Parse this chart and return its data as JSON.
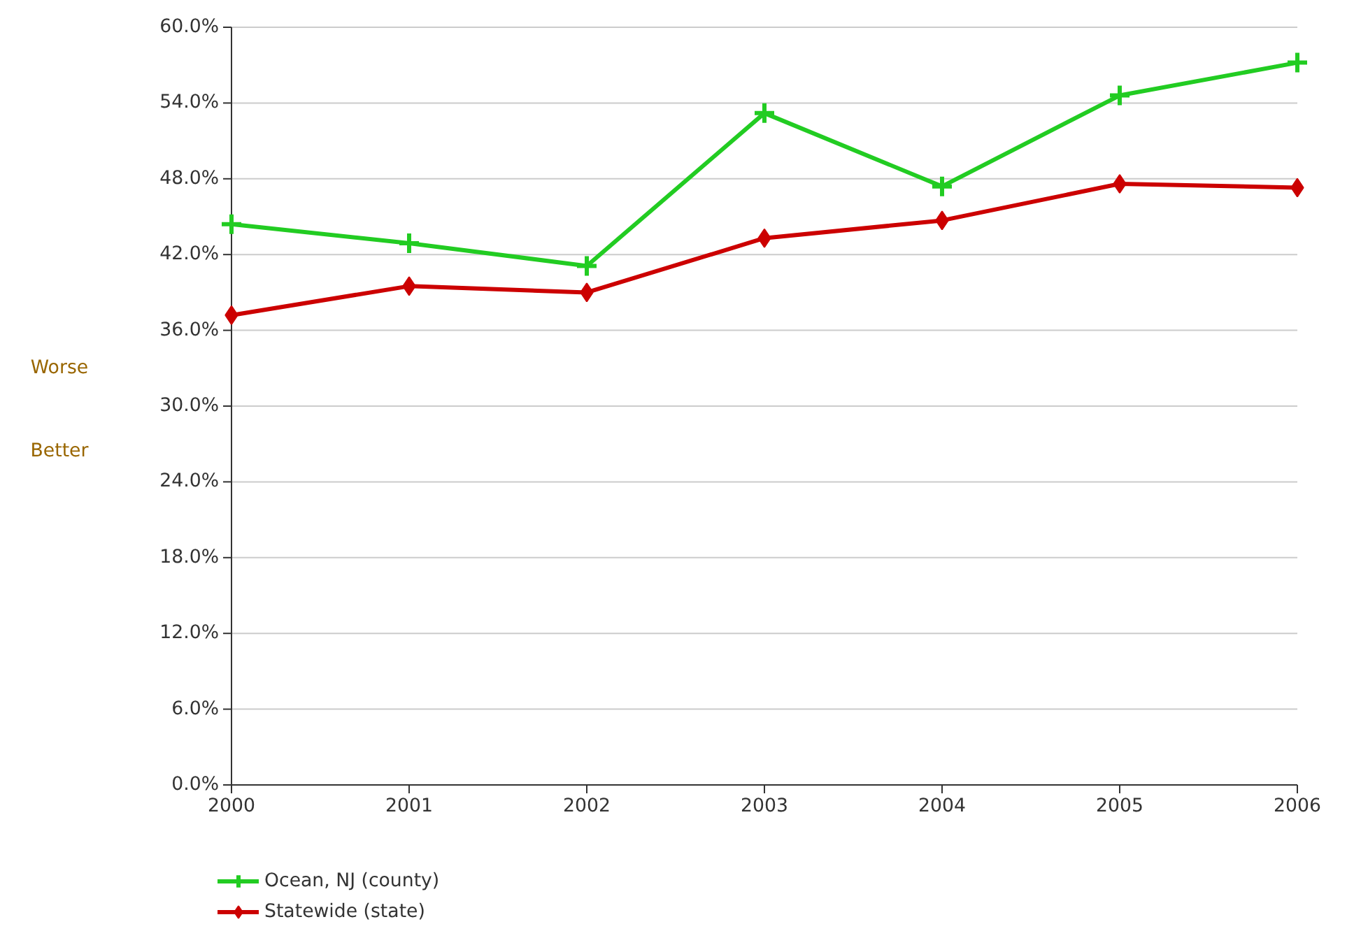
{
  "chart_data": {
    "type": "line",
    "x": [
      2000,
      2001,
      2002,
      2003,
      2004,
      2005,
      2006
    ],
    "xlim": [
      2000,
      2006
    ],
    "xticks": [
      2000,
      2001,
      2002,
      2003,
      2004,
      2005,
      2006
    ],
    "ylim": [
      0,
      60
    ],
    "yticks": [
      {
        "value": 0,
        "label": "0.0%"
      },
      {
        "value": 6,
        "label": "6.0%"
      },
      {
        "value": 12,
        "label": "12.0%"
      },
      {
        "value": 18,
        "label": "18.0%"
      },
      {
        "value": 24,
        "label": "24.0%"
      },
      {
        "value": 30,
        "label": "30.0%"
      },
      {
        "value": 36,
        "label": "36.0%"
      },
      {
        "value": 42,
        "label": "42.0%"
      },
      {
        "value": 48,
        "label": "48.0%"
      },
      {
        "value": 54,
        "label": "54.0%"
      },
      {
        "value": 60,
        "label": "60.0%"
      }
    ],
    "grid": "y",
    "legend": "bottom",
    "line_style": "solid",
    "annotations": [
      "Worse",
      "Better"
    ],
    "series": [
      {
        "name": "Ocean, NJ (county)",
        "color": "#22cc22",
        "marker": "cross",
        "values": [
          44.4,
          42.9,
          41.1,
          53.2,
          47.4,
          54.6,
          57.2
        ]
      },
      {
        "name": "Statewide (state)",
        "color": "#cc0000",
        "marker": "diamond",
        "values": [
          37.2,
          39.5,
          39.0,
          43.3,
          44.7,
          47.6,
          47.3
        ]
      }
    ]
  }
}
